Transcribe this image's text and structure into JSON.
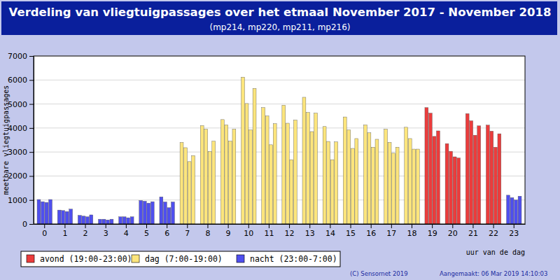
{
  "chart_data": {
    "type": "bar",
    "title": "Verdeling van vliegtuigpassages over het etmaal November 2017 - November 2018",
    "subtitle": "(mp214, mp220, mp211, mp216)",
    "y_label": "meetbare vliegtuigpassages",
    "x_label": "uur van de dag",
    "categories": [
      "0",
      "1",
      "2",
      "3",
      "4",
      "5",
      "6",
      "7",
      "8",
      "9",
      "10",
      "11",
      "12",
      "13",
      "14",
      "15",
      "16",
      "17",
      "18",
      "19",
      "20",
      "21",
      "22",
      "23"
    ],
    "series": [
      {
        "values": [
          1020,
          580,
          360,
          200,
          300,
          980,
          1130,
          3400,
          4100,
          4350,
          6120,
          4850,
          4950,
          5280,
          4060,
          4460,
          4130,
          3950,
          4030,
          4850,
          3350,
          4600,
          4120,
          1200
        ]
      },
      {
        "values": [
          930,
          560,
          330,
          200,
          300,
          950,
          920,
          3180,
          3950,
          4130,
          5020,
          4500,
          4200,
          4650,
          3440,
          3920,
          3800,
          3400,
          3560,
          4620,
          3030,
          4300,
          3870,
          1100
        ]
      },
      {
        "values": [
          900,
          520,
          300,
          170,
          260,
          870,
          680,
          2600,
          3020,
          3450,
          3920,
          3300,
          2680,
          3850,
          2680,
          3150,
          3200,
          2950,
          3120,
          3650,
          2800,
          3700,
          3200,
          1000
        ]
      },
      {
        "values": [
          1020,
          620,
          380,
          200,
          300,
          930,
          920,
          2850,
          3450,
          3950,
          5650,
          4180,
          4330,
          4620,
          3420,
          3560,
          3530,
          3200,
          3120,
          3880,
          2750,
          4090,
          3760,
          1160
        ]
      }
    ],
    "colors": [
      "#4f4fee",
      "#4f4fee",
      "#4f4fee",
      "#4f4fee",
      "#4f4fee",
      "#4f4fee",
      "#4f4fee",
      "#fce57c",
      "#fce57c",
      "#fce57c",
      "#fce57c",
      "#fce57c",
      "#fce57c",
      "#fce57c",
      "#fce57c",
      "#fce57c",
      "#fce57c",
      "#fce57c",
      "#fce57c",
      "#ec3c3c",
      "#ec3c3c",
      "#ec3c3c",
      "#ec3c3c",
      "#4f4fee"
    ],
    "ylim": [
      0,
      7000
    ],
    "yticks": [
      0,
      1000,
      2000,
      3000,
      4000,
      5000,
      6000,
      7000
    ],
    "grid": true,
    "legend_items": [
      {
        "label": "avond (19:00-23:00)",
        "color": "#ec3c3c"
      },
      {
        "label": "dag (7:00-19:00)",
        "color": "#fce57c"
      },
      {
        "label": "nacht (23:00-7:00)",
        "color": "#4f4fee"
      }
    ],
    "footnotes": [
      "(C) Sensornet 2019",
      "Aangemaakt: 06 Mar 2019 14:10:03"
    ]
  }
}
